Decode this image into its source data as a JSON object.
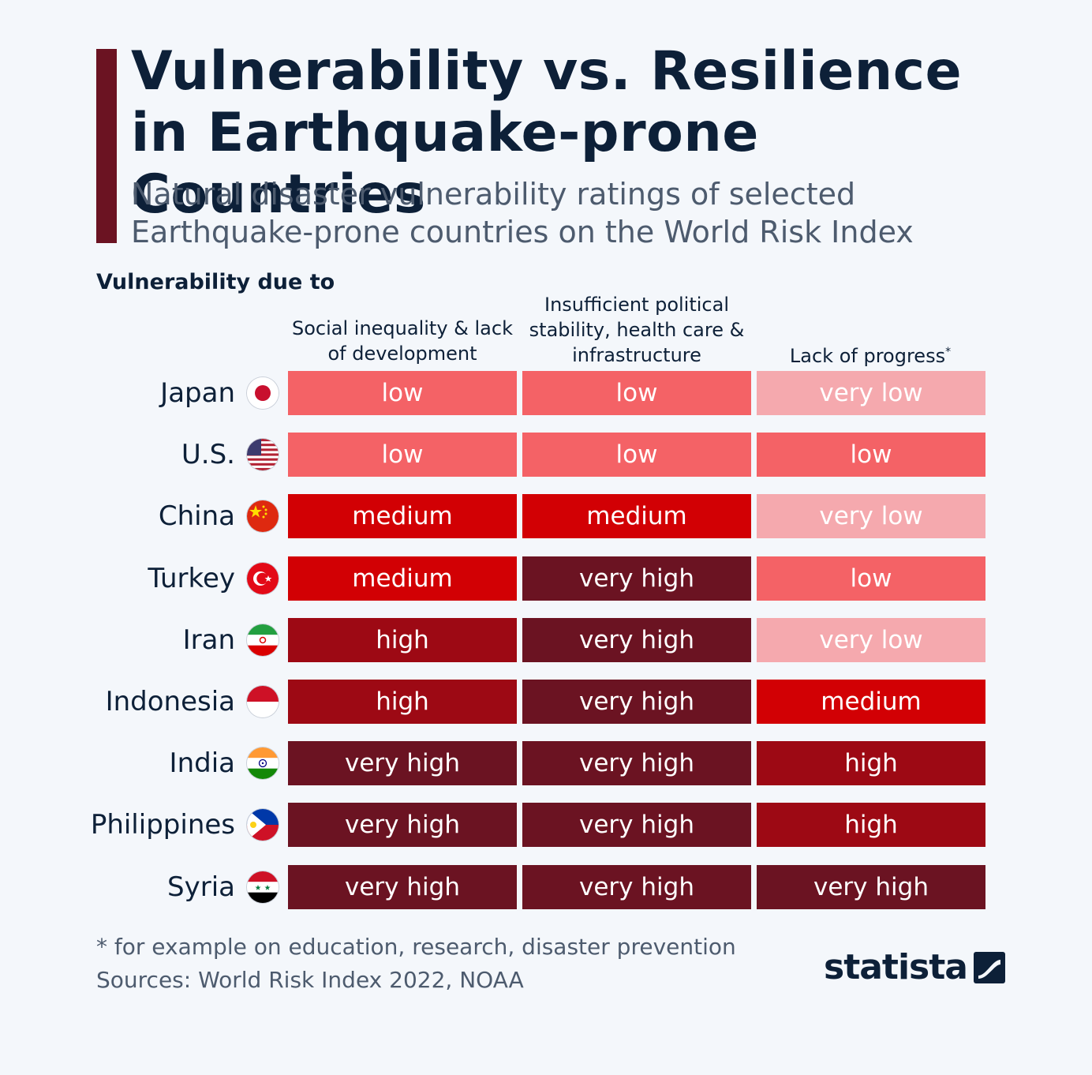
{
  "header": {
    "title": "Vulnerability vs. Resilience in Earthquake-prone Countries",
    "subtitle": "Natural disaster vulnerability ratings of selected Earthquake-prone countries on the World Risk Index",
    "section_label": "Vulnerability due to"
  },
  "chart_data": {
    "type": "table",
    "title": "Vulnerability vs. Resilience in Earthquake-prone Countries",
    "columns": [
      "Social inequality & lack of development",
      "Insufficient political stability, health care & infrastructure",
      "Lack of progress"
    ],
    "column_footnote_marks": [
      "",
      "",
      "*"
    ],
    "rows": [
      {
        "country": "Japan",
        "ratings": [
          "low",
          "low",
          "very low"
        ]
      },
      {
        "country": "U.S.",
        "ratings": [
          "low",
          "low",
          "low"
        ]
      },
      {
        "country": "China",
        "ratings": [
          "medium",
          "medium",
          "very low"
        ]
      },
      {
        "country": "Turkey",
        "ratings": [
          "medium",
          "very high",
          "low"
        ]
      },
      {
        "country": "Iran",
        "ratings": [
          "high",
          "very high",
          "very low"
        ]
      },
      {
        "country": "Indonesia",
        "ratings": [
          "high",
          "very high",
          "medium"
        ]
      },
      {
        "country": "India",
        "ratings": [
          "very high",
          "very high",
          "high"
        ]
      },
      {
        "country": "Philippines",
        "ratings": [
          "very high",
          "very high",
          "high"
        ]
      },
      {
        "country": "Syria",
        "ratings": [
          "very high",
          "very high",
          "very high"
        ]
      }
    ],
    "rating_colors": {
      "very low": "#f5a9ae",
      "low": "#f46266",
      "medium": "#d20004",
      "high": "#9d0914",
      "very high": "#6b1322"
    },
    "flag_icons": [
      "japan-flag-icon",
      "us-flag-icon",
      "china-flag-icon",
      "turkey-flag-icon",
      "iran-flag-icon",
      "indonesia-flag-icon",
      "india-flag-icon",
      "philippines-flag-icon",
      "syria-flag-icon"
    ]
  },
  "footer": {
    "footnote": "* for example on education, research, disaster prevention",
    "sources": "Sources: World Risk Index 2022, NOAA",
    "brand": "statista"
  },
  "colors": {
    "accent": "#6b1322",
    "title": "#0d2038",
    "subtitle": "#4d5b6e",
    "background": "#f4f7fb"
  }
}
